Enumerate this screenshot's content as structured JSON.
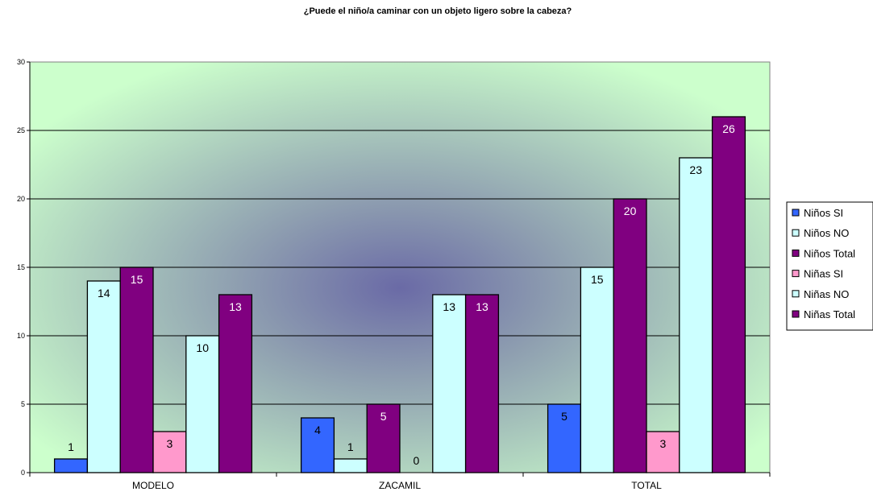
{
  "chart_data": {
    "type": "bar",
    "title": "¿Puede el niño/a caminar con un objeto ligero sobre la cabeza?",
    "categories": [
      "MODELO",
      "ZACAMIL",
      "TOTAL"
    ],
    "ylim": [
      0,
      30
    ],
    "yticks": [
      0,
      5,
      10,
      15,
      20,
      25,
      30
    ],
    "grid": true,
    "legend_position": "right",
    "series": [
      {
        "name": "Niños SI",
        "values": [
          1,
          4,
          5
        ],
        "color": "#3366FF",
        "label_color": "#000000"
      },
      {
        "name": "Niños NO",
        "values": [
          14,
          1,
          15
        ],
        "color": "#CCFFFF",
        "label_color": "#000000"
      },
      {
        "name": "Niños Total",
        "values": [
          15,
          5,
          20
        ],
        "color": "#800080",
        "label_color": "#FFFFFF"
      },
      {
        "name": "Niñas SI",
        "values": [
          3,
          0,
          3
        ],
        "color": "#FF99CC",
        "label_color": "#000000"
      },
      {
        "name": "Niñas NO",
        "values": [
          10,
          13,
          23
        ],
        "color": "#CCFFFF",
        "label_color": "#000000"
      },
      {
        "name": "Niñas Total",
        "values": [
          13,
          13,
          26
        ],
        "color": "#800080",
        "label_color": "#FFFFFF"
      }
    ],
    "plot_background": {
      "center": "#6A6AA6",
      "edge": "#CCFFCC"
    }
  }
}
